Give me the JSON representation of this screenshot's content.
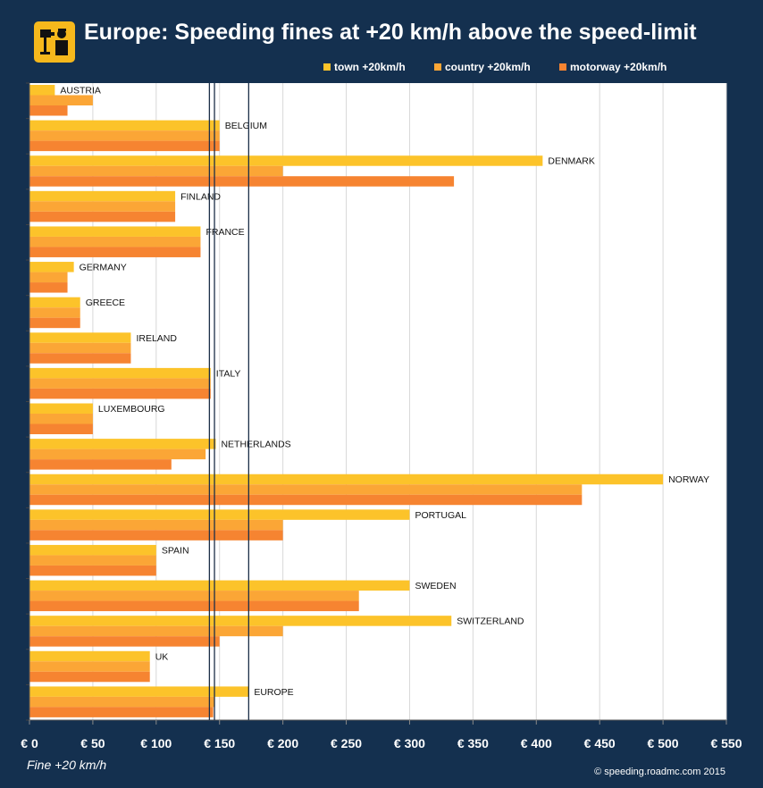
{
  "title": "Europe: Speeding fines at +20 km/h above the speed-limit",
  "logo": {
    "icon": "speed-camera-icon",
    "color": "#f6b81c"
  },
  "legend": [
    {
      "label": "town +20km/h",
      "color": "#fcc32a"
    },
    {
      "label": "country +20km/h",
      "color": "#fba636"
    },
    {
      "label": "motorway +20km/h",
      "color": "#f68431"
    }
  ],
  "xlabel": "Fine  +20 km/h",
  "credit": "© speeding.roadmc.com 2015",
  "colors": {
    "background": "#14304f",
    "plot_background": "#ffffff",
    "reference_lines": "#1c2f48",
    "text": "#ffffff"
  },
  "chart_data": {
    "type": "bar",
    "orientation": "horizontal",
    "categories": [
      "AUSTRIA",
      "BELGIUM",
      "DENMARK",
      "FINLAND",
      "FRANCE",
      "GERMANY",
      "GREECE",
      "IRELAND",
      "ITALY",
      "LUXEMBOURG",
      "NETHERLANDS",
      "NORWAY",
      "PORTUGAL",
      "SPAIN",
      "SWEDEN",
      "SWITZERLAND",
      "UK",
      "EUROPE"
    ],
    "series": [
      {
        "name": "town +20km/h",
        "color": "#fcc32a",
        "values": [
          20,
          150,
          405,
          115,
          135,
          35,
          40,
          80,
          143,
          50,
          147,
          500,
          300,
          100,
          300,
          333,
          95,
          173
        ]
      },
      {
        "name": "country +20km/h",
        "color": "#fba636",
        "values": [
          50,
          150,
          200,
          115,
          135,
          30,
          40,
          80,
          143,
          50,
          139,
          436,
          200,
          100,
          260,
          200,
          95,
          146
        ]
      },
      {
        "name": "motorway +20km/h",
        "color": "#f68431",
        "values": [
          30,
          150,
          335,
          115,
          135,
          30,
          40,
          80,
          143,
          50,
          112,
          436,
          200,
          100,
          260,
          150,
          95,
          145
        ]
      }
    ],
    "reference_lines": [
      142,
      146,
      173
    ],
    "xlim": [
      0,
      550
    ],
    "xticks": [
      0,
      50,
      100,
      150,
      200,
      250,
      300,
      350,
      400,
      450,
      500,
      550
    ],
    "xtick_labels": [
      "€ 0",
      "€ 50",
      "€ 100",
      "€ 150",
      "€ 200",
      "€ 250",
      "€ 300",
      "€ 350",
      "€ 400",
      "€ 450",
      "€ 500",
      "€ 550"
    ],
    "xlabel": "Fine  +20 km/h",
    "grid": true,
    "legend_position": "top-right"
  }
}
